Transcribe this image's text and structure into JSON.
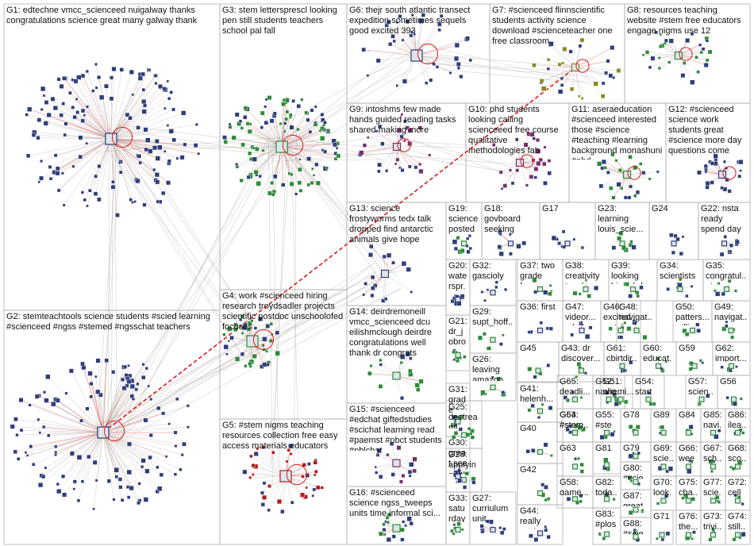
{
  "colors": {
    "background": "#ffffff",
    "cell_border": "#b0b0b0",
    "edge": "#b7a9a5",
    "edge_red": "#d81b1b",
    "node_fill": "#2f3e7a",
    "node_green": "#2f8a3a",
    "node_red": "#b01e1e",
    "text": "#111111"
  },
  "groups": [
    {
      "id": "G1",
      "label": "G1: edtechne vmcc_scienceed nuigalway thanks congratulations science great many galway thank",
      "nodes": 140,
      "color": "#2f3e7a"
    },
    {
      "id": "G2",
      "label": "G2: stemteachtools science students #scied learning #scienceed #ngss #stemed #ngsschat teachers",
      "nodes": 120,
      "color": "#2f3e7a"
    },
    {
      "id": "G3",
      "label": "G3: stem lettersprescl looking pen still students teachers school pal fall",
      "nodes": 110,
      "color": "#2f8a3a"
    },
    {
      "id": "G4",
      "label": "G4: work #scienceed hiring research troydsadler projects scientific postdoc unschoolofed focuses",
      "nodes": 40,
      "color": "#2f8a3a"
    },
    {
      "id": "G5",
      "label": "G5: #stem nigms teaching resources collection free easy access materials educators",
      "nodes": 38,
      "color": "#b01e1e"
    },
    {
      "id": "G6",
      "label": "G6: thejr south atlantic transect expedition sometimes sequels good excited 393",
      "nodes": 36,
      "color": "#2f3e7a"
    },
    {
      "id": "G7",
      "label": "G7: #scienceed flinnscientific students activity science download #scienceteacher one free classroom",
      "nodes": 30,
      "color": "#8a8a20"
    },
    {
      "id": "G8",
      "label": "G8: resources teaching website #stem free educators engage nigms use 12",
      "nodes": 30,
      "color": "#2f8a3a"
    },
    {
      "id": "G9",
      "label": "G9: intoshms few made hands guided reading tasks shared making more",
      "nodes": 28,
      "color": "#7a2f6a"
    },
    {
      "id": "G10",
      "label": "G10: phd students looking calling scienceeed free course qualitative methodologies fab",
      "nodes": 26,
      "color": "#7a2f6a"
    },
    {
      "id": "G11",
      "label": "G11: aseraeducation #scienceed interested those #science #teaching #learning background monashuni #phd",
      "nodes": 24,
      "color": "#2f8a3a"
    },
    {
      "id": "G12",
      "label": "G12: #scienceed science work students great #science more day questions come",
      "nodes": 22,
      "color": "#2f3e7a"
    },
    {
      "id": "G13",
      "label": "G13: science frostyworms tedx talk dropped find antarctic animals give hope",
      "nodes": 16,
      "color": "#2f3e7a"
    },
    {
      "id": "G14",
      "label": "G14: deirdremoneill vmcc_scienceed dcu eilishmclough deirdre congratulations well thank dr congrats",
      "nodes": 16,
      "color": "#2f8a3a"
    },
    {
      "id": "G15",
      "label": "G15: #scienceed #edchat giftedstudies #scichat learning read #paemst #nbct students #pblchat",
      "nodes": 16,
      "color": "#7a2f6a"
    },
    {
      "id": "G16",
      "label": "G16: #scienceed science ngss_tweeps units time informal sci...",
      "nodes": 16,
      "color": "#2f8a3a"
    },
    {
      "id": "G17",
      "label": "G17",
      "nodes": 8,
      "color": "#2f3e7a"
    },
    {
      "id": "G18",
      "label": "G18: govboard seeking nominations...",
      "nodes": 10,
      "color": "#2f3e7a"
    },
    {
      "id": "G19",
      "label": "G19: science posted grades ncstateced...",
      "nodes": 10,
      "color": "#2f8a3a"
    },
    {
      "id": "G20",
      "label": "G20: waterspr... river great today well",
      "nodes": 10,
      "color": "#2f3e7a"
    },
    {
      "id": "G21",
      "label": "G21: dr_jobro use #podcasts lessons...",
      "nodes": 10,
      "color": "#2f8a3a"
    },
    {
      "id": "G22",
      "label": "G22: nsta ready spend day vexrobotic...",
      "nodes": 8,
      "color": "#2f3e7a"
    },
    {
      "id": "G23",
      "label": "G23: learning louis_scie... uob_heft...",
      "nodes": 8,
      "color": "#2f8a3a"
    },
    {
      "id": "G24",
      "label": "G24",
      "nodes": 6,
      "color": "#2f3e7a"
    },
    {
      "id": "G25",
      "label": "G25: destreami... science easier...",
      "nodes": 8,
      "color": "#2f8a3a"
    },
    {
      "id": "G26",
      "label": "G26: leaving amazon rainforest...",
      "nodes": 8,
      "color": "#2f8a3a"
    },
    {
      "id": "G27",
      "label": "G27: curriulum unit martine...",
      "nodes": 8,
      "color": "#2f3e7a"
    },
    {
      "id": "G28",
      "label": "G28: applying 8th grade science...",
      "nodes": 8,
      "color": "#2f8a3a"
    },
    {
      "id": "G29",
      "label": "G29: supt_hoff...",
      "nodes": 6,
      "color": "#2f8a3a"
    },
    {
      "id": "G30",
      "label": "G30: great see friend #forceof...",
      "nodes": 8,
      "color": "#2f3e7a"
    },
    {
      "id": "G31",
      "label": "G31: grade today first classes...",
      "nodes": 8,
      "color": "#2f8a3a"
    },
    {
      "id": "G32",
      "label": "G32: gascioly",
      "nodes": 6,
      "color": "#2f3e7a"
    },
    {
      "id": "G33",
      "label": "G33: saturday",
      "nodes": 6,
      "color": "#2f8a3a"
    },
    {
      "id": "G34",
      "label": "G34: scientists musicasc...",
      "nodes": 6,
      "color": "#2f8a3a"
    },
    {
      "id": "G35",
      "label": "G35: congratul... tony",
      "nodes": 6,
      "color": "#2f8a3a"
    },
    {
      "id": "G36",
      "label": "G36: first",
      "nodes": 5,
      "color": "#2f3e7a"
    },
    {
      "id": "G37",
      "label": "G37: two grade fours...",
      "nodes": 6,
      "color": "#2f8a3a"
    },
    {
      "id": "G38",
      "label": "G38: creativity teachers...",
      "nodes": 6,
      "color": "#2f8a3a"
    },
    {
      "id": "G39",
      "label": "G39: looking hire phd",
      "nodes": 6,
      "color": "#2f8a3a"
    },
    {
      "id": "G40",
      "label": "G40",
      "nodes": 5,
      "color": "#2f8a3a"
    },
    {
      "id": "G41",
      "label": "G41: helenh... #steme...",
      "nodes": 5,
      "color": "#2f8a3a"
    },
    {
      "id": "G42",
      "label": "G42",
      "nodes": 5,
      "color": "#2f8a3a"
    },
    {
      "id": "G43",
      "label": "G43: dr discover...",
      "nodes": 5,
      "color": "#2f8a3a"
    },
    {
      "id": "G44",
      "label": "G44: really excited...",
      "nodes": 5,
      "color": "#2f3e7a"
    },
    {
      "id": "G45",
      "label": "G45",
      "nodes": 5,
      "color": "#2f8a3a"
    },
    {
      "id": "G46",
      "label": "G46: excited watch...",
      "nodes": 5,
      "color": "#2f8a3a"
    },
    {
      "id": "G47",
      "label": "G47: videor... mb_bu...",
      "nodes": 5,
      "color": "#2f3e7a"
    },
    {
      "id": "G48",
      "label": "G48: navigat... #makei...",
      "nodes": 5,
      "color": "#2f8a3a"
    },
    {
      "id": "G49",
      "label": "G49: navigat... #makei...",
      "nodes": 5,
      "color": "#2f8a3a"
    },
    {
      "id": "G50",
      "label": "G50: patters... william...",
      "nodes": 5,
      "color": "#2f8a3a"
    },
    {
      "id": "G51",
      "label": "G51: chemi... chapt...",
      "nodes": 4,
      "color": "#2f8a3a"
    },
    {
      "id": "G52",
      "label": "G52: navig... #mak...",
      "nodes": 4,
      "color": "#2f8a3a"
    },
    {
      "id": "G53",
      "label": "G53: #stem... postdo...",
      "nodes": 4,
      "color": "#2f8a3a"
    },
    {
      "id": "G54",
      "label": "G54: start scien...",
      "nodes": 4,
      "color": "#2f8a3a"
    },
    {
      "id": "G55",
      "label": "G55: #stem... #ste...",
      "nodes": 4,
      "color": "#2f8a3a"
    },
    {
      "id": "G56",
      "label": "G56",
      "nodes": 4,
      "color": "#2f8a3a"
    },
    {
      "id": "G57",
      "label": "G57: scien... hello...",
      "nodes": 4,
      "color": "#2f8a3a"
    },
    {
      "id": "G58",
      "label": "G58: game...",
      "nodes": 4,
      "color": "#2f8a3a"
    },
    {
      "id": "G59",
      "label": "G59",
      "nodes": 4,
      "color": "#2f8a3a"
    },
    {
      "id": "G60",
      "label": "G60: educat...",
      "nodes": 4,
      "color": "#2f8a3a"
    },
    {
      "id": "G61",
      "label": "G61: cbirtdir...",
      "nodes": 4,
      "color": "#2f8a3a"
    },
    {
      "id": "G62",
      "label": "G62: import...",
      "nodes": 4,
      "color": "#2f8a3a"
    },
    {
      "id": "G63",
      "label": "G63",
      "nodes": 4,
      "color": "#2f8a3a"
    },
    {
      "id": "G64",
      "label": "G64: #stem... postdo...",
      "nodes": 4,
      "color": "#2f8a3a"
    },
    {
      "id": "G65",
      "label": "G65: deadli... approa...",
      "nodes": 4,
      "color": "#2f8a3a"
    },
    {
      "id": "G66",
      "label": "G66: week",
      "nodes": 3,
      "color": "#2f8a3a"
    },
    {
      "id": "G67",
      "label": "G67: sch...",
      "nodes": 3,
      "color": "#2f8a3a"
    },
    {
      "id": "G68",
      "label": "G68: sco...",
      "nodes": 3,
      "color": "#2f8a3a"
    },
    {
      "id": "G69",
      "label": "G69: scie...",
      "nodes": 3,
      "color": "#2f8a3a"
    },
    {
      "id": "G70",
      "label": "G70: look...",
      "nodes": 3,
      "color": "#2f8a3a"
    },
    {
      "id": "G71",
      "label": "G71",
      "nodes": 3,
      "color": "#2f8a3a"
    },
    {
      "id": "G72",
      "label": "G72: cell",
      "nodes": 3,
      "color": "#2f8a3a"
    },
    {
      "id": "G73",
      "label": "G73: trivi...",
      "nodes": 3,
      "color": "#2f8a3a"
    },
    {
      "id": "G74",
      "label": "G74: still...",
      "nodes": 3,
      "color": "#2f8a3a"
    },
    {
      "id": "G75",
      "label": "G75: cha...",
      "nodes": 3,
      "color": "#2f8a3a"
    },
    {
      "id": "G76",
      "label": "G76: the...",
      "nodes": 3,
      "color": "#2f8a3a"
    },
    {
      "id": "G77",
      "label": "G77: scie...",
      "nodes": 3,
      "color": "#2f8a3a"
    },
    {
      "id": "G78",
      "label": "G78",
      "nodes": 3,
      "color": "#2f8a3a"
    },
    {
      "id": "G79",
      "label": "G79",
      "nodes": 3,
      "color": "#2f8a3a"
    },
    {
      "id": "G80",
      "label": "G80: #scie...",
      "nodes": 3,
      "color": "#2f8a3a"
    },
    {
      "id": "G81",
      "label": "G81",
      "nodes": 3,
      "color": "#2f8a3a"
    },
    {
      "id": "G82",
      "label": "G82: toda...",
      "nodes": 3,
      "color": "#2f8a3a"
    },
    {
      "id": "G83",
      "label": "G83: #plos...",
      "nodes": 3,
      "color": "#2f8a3a"
    },
    {
      "id": "G84",
      "label": "G84",
      "nodes": 3,
      "color": "#2f8a3a"
    },
    {
      "id": "G85",
      "label": "G85: navi...",
      "nodes": 3,
      "color": "#2f8a3a"
    },
    {
      "id": "G86",
      "label": "G86: ilea...",
      "nodes": 3,
      "color": "#2f8a3a"
    },
    {
      "id": "G87",
      "label": "G87: great...",
      "nodes": 3,
      "color": "#2f8a3a"
    },
    {
      "id": "G88",
      "label": "G88: #scie...",
      "nodes": 3,
      "color": "#2f8a3a"
    },
    {
      "id": "G89",
      "label": "G89",
      "nodes": 3,
      "color": "#2f8a3a"
    }
  ]
}
